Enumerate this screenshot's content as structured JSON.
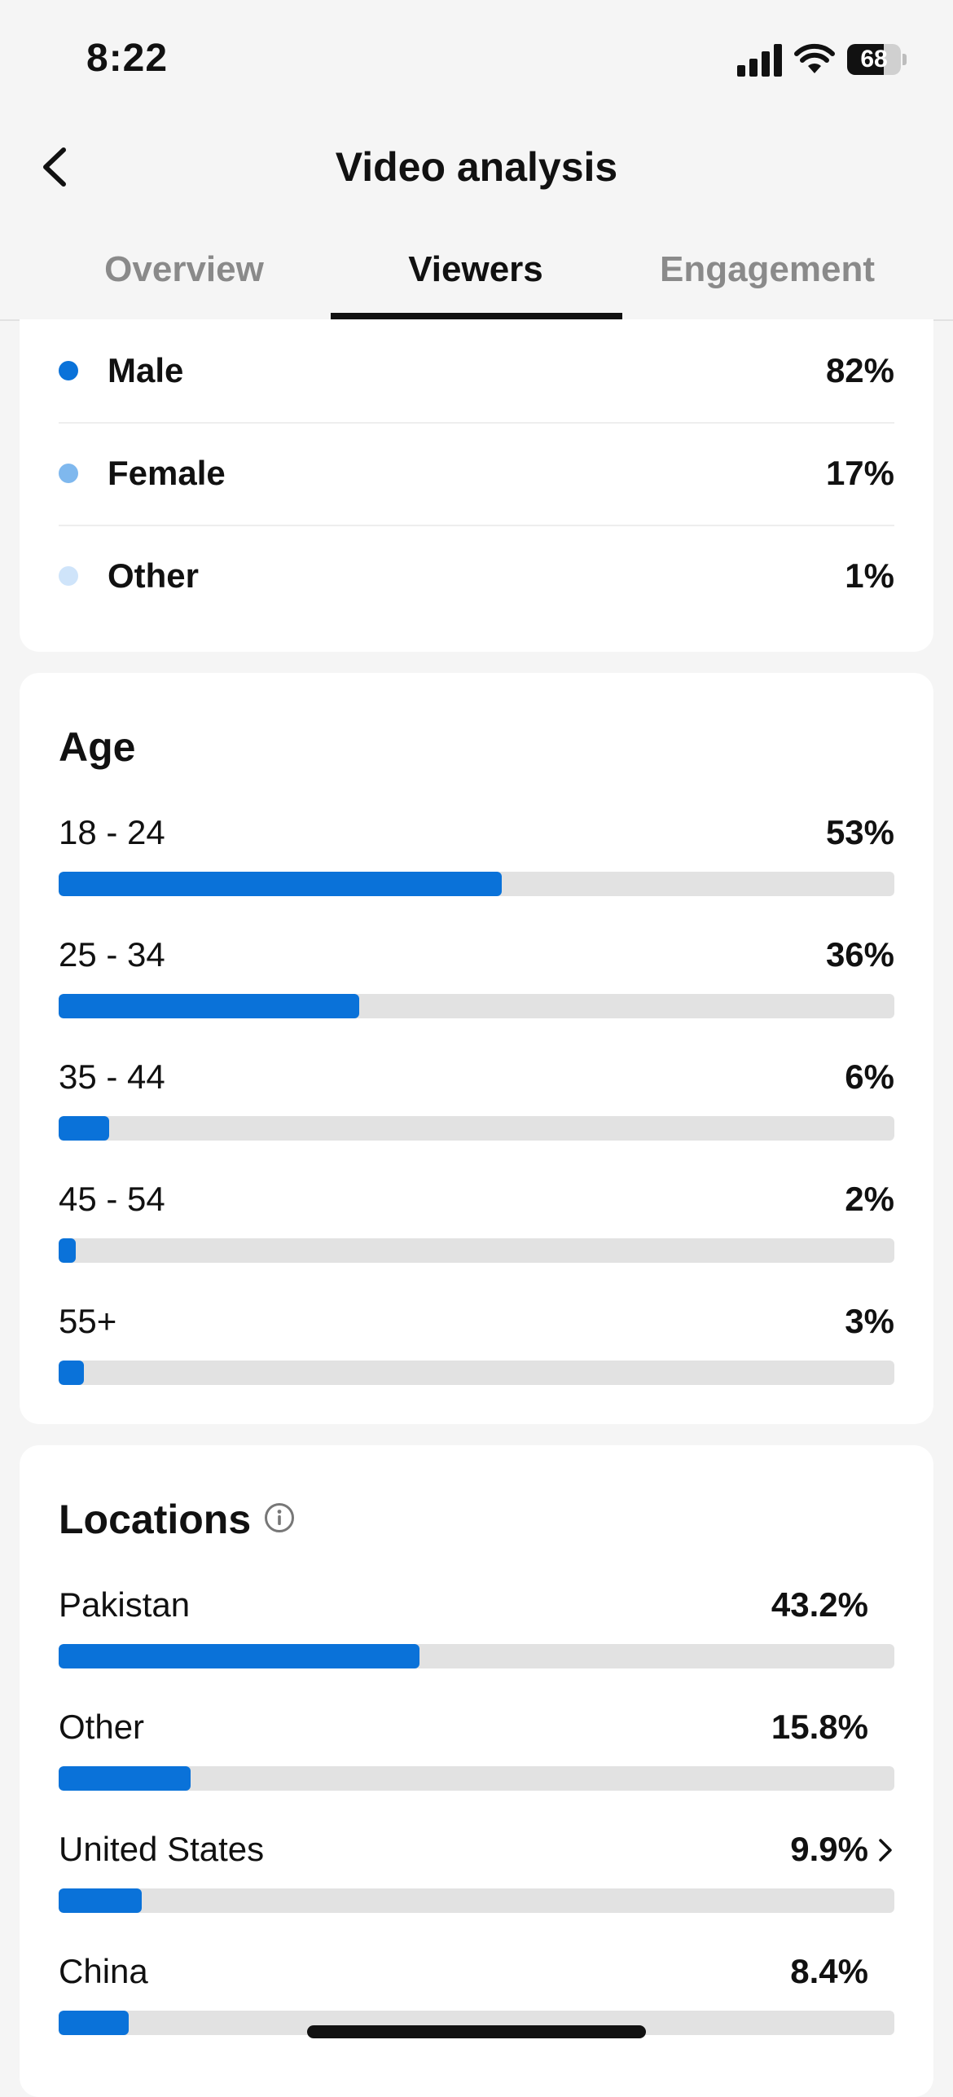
{
  "status_bar": {
    "time": "8:22",
    "battery": "68",
    "battery_level": 0.68
  },
  "header": {
    "title": "Video analysis"
  },
  "tabs": [
    {
      "label": "Overview",
      "active": false
    },
    {
      "label": "Viewers",
      "active": true
    },
    {
      "label": "Engagement",
      "active": false
    }
  ],
  "gender": {
    "items": [
      {
        "label": "Male",
        "value": "82%",
        "color": "#0a72d9"
      },
      {
        "label": "Female",
        "value": "17%",
        "color": "#7fb8ee"
      },
      {
        "label": "Other",
        "value": "1%",
        "color": "#cfe4fa"
      }
    ]
  },
  "age": {
    "title": "Age",
    "items": [
      {
        "label": "18 - 24",
        "value": "53%",
        "fraction": 0.53
      },
      {
        "label": "25 - 34",
        "value": "36%",
        "fraction": 0.36
      },
      {
        "label": "35 - 44",
        "value": "6%",
        "fraction": 0.06
      },
      {
        "label": "45 - 54",
        "value": "2%",
        "fraction": 0.02
      },
      {
        "label": "55+",
        "value": "3%",
        "fraction": 0.03
      }
    ]
  },
  "locations": {
    "title": "Locations",
    "items": [
      {
        "label": "Pakistan",
        "value": "43.2%",
        "fraction": 0.432,
        "chevron": false
      },
      {
        "label": "Other",
        "value": "15.8%",
        "fraction": 0.158,
        "chevron": false
      },
      {
        "label": "United States",
        "value": "9.9%",
        "fraction": 0.099,
        "chevron": true
      },
      {
        "label": "China",
        "value": "8.4%",
        "fraction": 0.084,
        "chevron": false
      }
    ]
  },
  "colors": {
    "accent": "#0a72d9",
    "track": "#e2e2e2"
  }
}
